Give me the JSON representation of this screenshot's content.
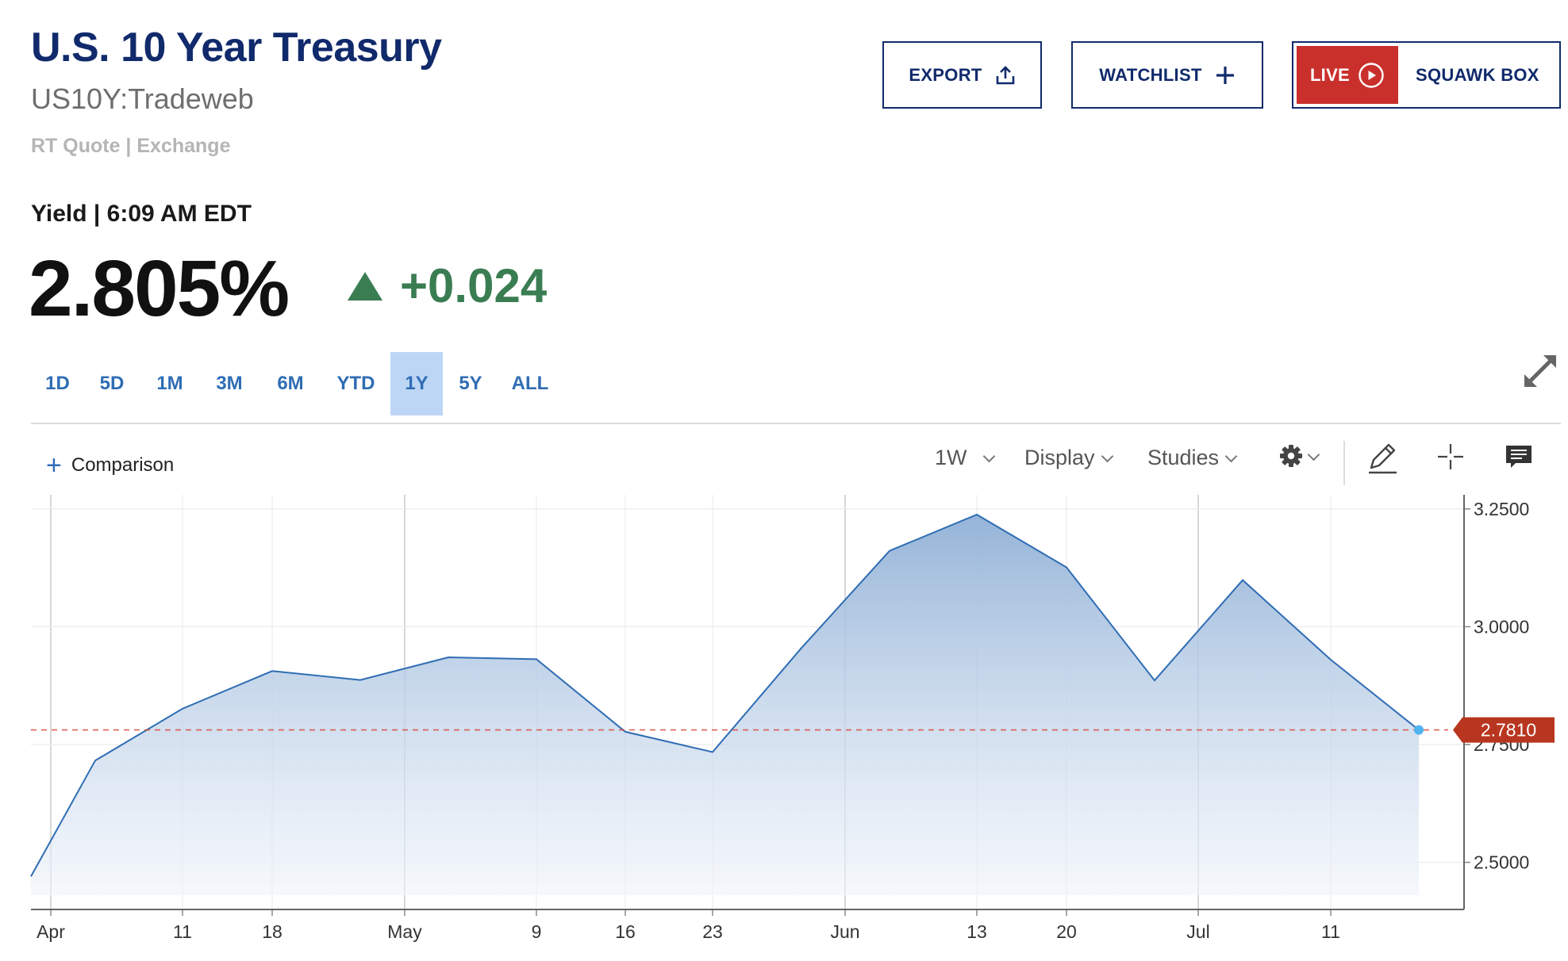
{
  "header": {
    "title": "U.S. 10 Year Treasury",
    "symbol": "US10Y:Tradeweb",
    "quote_type": "RT Quote | Exchange"
  },
  "actions": {
    "export_label": "EXPORT",
    "watchlist_label": "WATCHLIST",
    "live_label": "LIVE",
    "squawk_label": "SQUAWK BOX"
  },
  "quote": {
    "yield_label": "Yield | 6:09 AM EDT",
    "price": "2.805%",
    "change": "+0.024",
    "change_color": "#3a7d52"
  },
  "ranges": {
    "items": [
      "1D",
      "5D",
      "1M",
      "3M",
      "6M",
      "YTD",
      "1Y",
      "5Y",
      "ALL"
    ],
    "active": "1Y"
  },
  "toolbar": {
    "comparison_label": "Comparison",
    "interval_label": "1W",
    "display_label": "Display",
    "studies_label": "Studies"
  },
  "icons": [
    "export-icon",
    "plus-icon",
    "play-icon",
    "expand-icon",
    "gear-icon",
    "pencil-icon",
    "crosshair-icon",
    "comment-icon"
  ],
  "chart_data": {
    "type": "area",
    "x_tick_labels": [
      "Apr",
      "11",
      "18",
      "May",
      "9",
      "16",
      "23",
      "Jun",
      "13",
      "20",
      "Jul",
      "11"
    ],
    "y_tick_labels": [
      "3.2500",
      "3.0000",
      "2.7500",
      "2.5000"
    ],
    "ylim": [
      2.4,
      3.28
    ],
    "series": [
      {
        "values": [
          2.47,
          2.716,
          2.826,
          2.906,
          2.887,
          2.935,
          2.931,
          2.777,
          2.734,
          2.955,
          3.161,
          3.238,
          3.126,
          2.886,
          3.099,
          2.93,
          2.781
        ]
      }
    ],
    "last_value_label": "2.7810",
    "last_value": 2.781,
    "line_color": "#2f6db4",
    "reference_line_color": "#d9463a",
    "grid": true
  }
}
